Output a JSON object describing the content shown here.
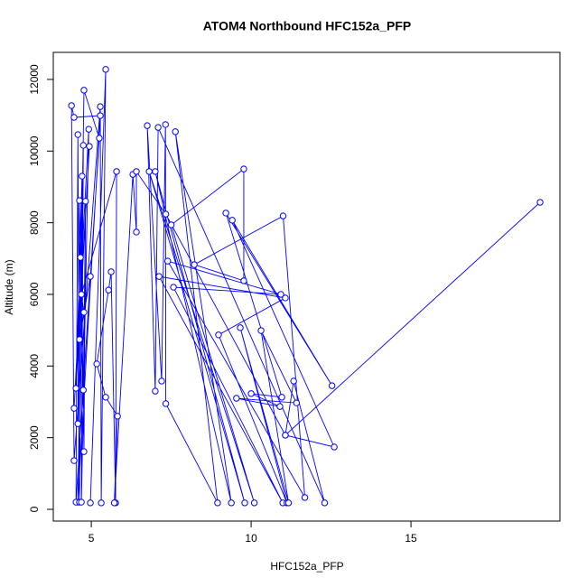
{
  "chart_data": {
    "type": "line",
    "title": "ATOM4 Northbound HFC152a_PFP",
    "x_label": "HFC152a_PFP",
    "y_label": "Altitude (m)",
    "color": "#0000ff",
    "markers": true,
    "x": [
      4.97,
      5.45,
      5.31,
      5.28,
      4.46,
      4.38,
      4.46,
      5.28,
      4.58,
      4.77,
      5.25,
      4.52,
      4.58,
      4.63,
      4.75,
      4.69,
      4.92,
      4.46,
      4.94,
      4.52,
      4.71,
      4.58,
      4.63,
      4.77,
      4.82,
      4.75,
      4.66,
      4.63,
      4.97,
      4.77,
      4.69,
      5.79,
      5.76,
      5.62,
      5.54,
      5.17,
      5.45,
      5.82,
      5.72,
      6.3,
      6.41,
      6.41,
      7.33,
      11.07,
      11.33,
      12.3,
      7.09,
      7.0,
      6.75,
      7.2,
      7.32,
      7.33,
      8.95,
      7.63,
      9.38,
      7.0,
      9.8,
      6.81,
      10.1,
      7.5,
      9.77,
      9.77,
      8.22,
      11.0,
      11.68,
      7.39,
      10.93,
      7.57,
      10.99,
      7.12,
      11.07,
      8.98,
      11.12,
      9.66,
      11.17,
      10.31,
      11.42,
      9.54,
      10.9,
      10.0,
      10.96,
      9.21,
      12.53,
      9.41,
      12.6,
      11.07,
      19.04
    ],
    "y": [
      180,
      12280,
      180,
      11240,
      1360,
      11270,
      10940,
      10990,
      200,
      11700,
      10360,
      200,
      10460,
      200,
      10160,
      200,
      10610,
      2820,
      10130,
      3380,
      9300,
      2390,
      8620,
      1610,
      8600,
      3330,
      7030,
      4740,
      6500,
      5500,
      6000,
      9430,
      180,
      6630,
      6120,
      4060,
      3130,
      2600,
      180,
      9350,
      7740,
      9430,
      8240,
      2070,
      3580,
      180,
      10660,
      3300,
      10710,
      3580,
      10740,
      2950,
      180,
      10540,
      180,
      9430,
      180,
      9430,
      180,
      7940,
      9500,
      6380,
      6830,
      8190,
      330,
      6930,
      6000,
      6200,
      180,
      6500,
      5900,
      4870,
      180,
      5070,
      180,
      4990,
      2970,
      3100,
      2870,
      3230,
      3130,
      8270,
      3450,
      8070,
      1740,
      2070,
      8570
    ],
    "xlim": [
      3.81,
      19.66
    ],
    "ylim": [
      -328,
      12755
    ],
    "xticks": [
      5,
      10,
      15
    ],
    "yticks": [
      0,
      2000,
      4000,
      6000,
      8000,
      10000,
      12000
    ]
  }
}
